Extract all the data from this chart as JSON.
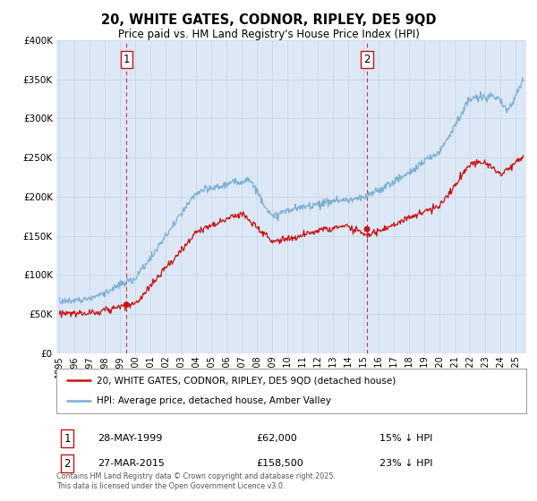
{
  "title": "20, WHITE GATES, CODNOR, RIPLEY, DE5 9QD",
  "subtitle": "Price paid vs. HM Land Registry's House Price Index (HPI)",
  "legend_line1": "20, WHITE GATES, CODNOR, RIPLEY, DE5 9QD (detached house)",
  "legend_line2": "HPI: Average price, detached house, Amber Valley",
  "sale1_label": "1",
  "sale1_date": "28-MAY-1999",
  "sale1_price": "£62,000",
  "sale1_hpi": "15% ↓ HPI",
  "sale1_year": 1999.41,
  "sale1_value": 62000,
  "sale2_label": "2",
  "sale2_date": "27-MAR-2015",
  "sale2_price": "£158,500",
  "sale2_hpi": "23% ↓ HPI",
  "sale2_year": 2015.23,
  "sale2_value": 158500,
  "red_color": "#cc1111",
  "blue_color": "#7bafd4",
  "plot_bg_color": "#dce8f5",
  "ylim": [
    0,
    400000
  ],
  "xlim_start": 1994.8,
  "xlim_end": 2025.7,
  "footer": "Contains HM Land Registry data © Crown copyright and database right 2025.\nThis data is licensed under the Open Government Licence v3.0."
}
